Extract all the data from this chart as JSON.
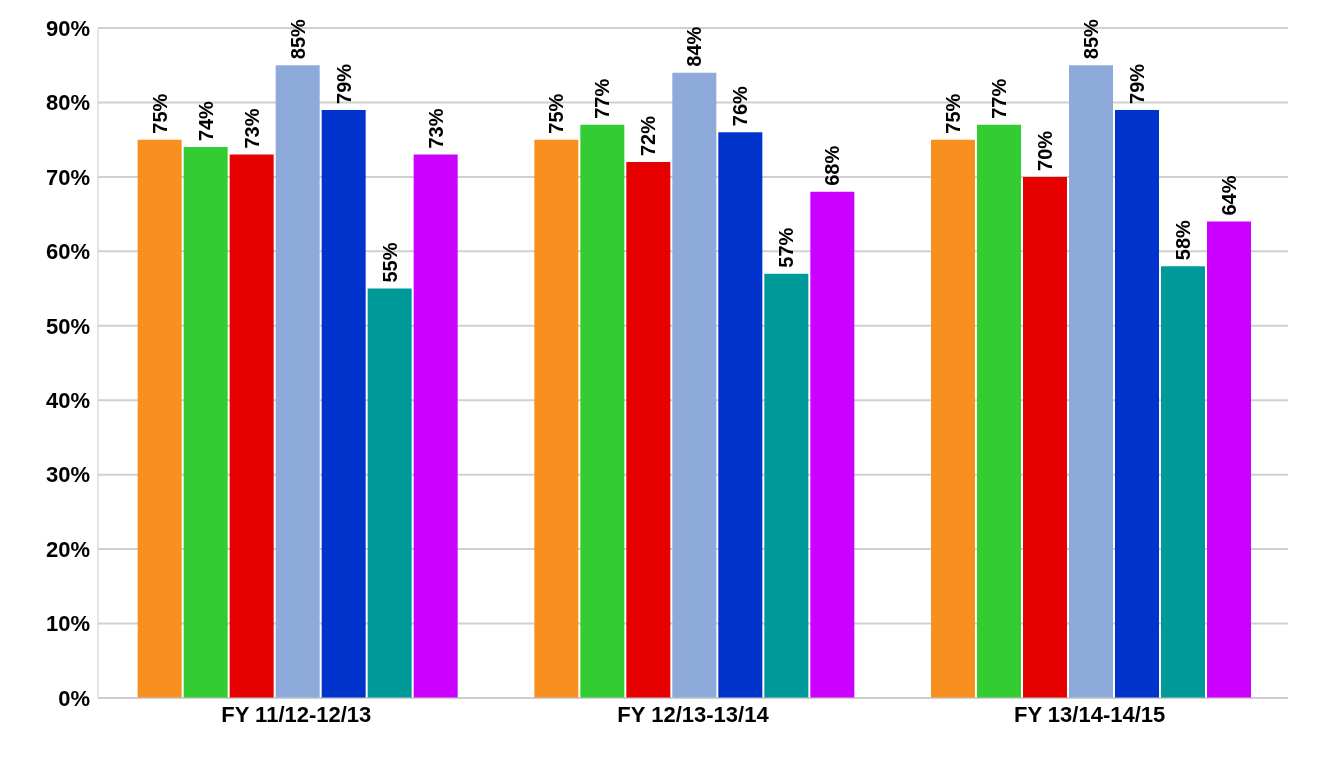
{
  "chart_data": {
    "type": "bar",
    "categories": [
      "FY 11/12-12/13",
      "FY 12/13-13/14",
      "FY 13/14-14/15"
    ],
    "series": [
      {
        "color": "#f7901e",
        "values": [
          75,
          75,
          75
        ],
        "value_labels": [
          "75%",
          "75%",
          "75%"
        ]
      },
      {
        "color": "#33cc33",
        "values": [
          74,
          77,
          77
        ],
        "value_labels": [
          "74%",
          "77%",
          "77%"
        ]
      },
      {
        "color": "#e60000",
        "values": [
          73,
          72,
          70
        ],
        "value_labels": [
          "73%",
          "72%",
          "70%"
        ]
      },
      {
        "color": "#8eaadb",
        "values": [
          85,
          84,
          85
        ],
        "value_labels": [
          "85%",
          "84%",
          "85%"
        ]
      },
      {
        "color": "#0033cc",
        "values": [
          79,
          76,
          79
        ],
        "value_labels": [
          "79%",
          "76%",
          "79%"
        ]
      },
      {
        "color": "#009999",
        "values": [
          55,
          57,
          58
        ],
        "value_labels": [
          "55%",
          "57%",
          "58%"
        ]
      },
      {
        "color": "#cc00ff",
        "values": [
          73,
          68,
          64
        ],
        "value_labels": [
          "73%",
          "68%",
          "64%"
        ]
      }
    ],
    "ylim": [
      0,
      90
    ],
    "yticks": [
      {
        "value": 0,
        "label": "0%"
      },
      {
        "value": 10,
        "label": "10%"
      },
      {
        "value": 20,
        "label": "20%"
      },
      {
        "value": 30,
        "label": "30%"
      },
      {
        "value": 40,
        "label": "40%"
      },
      {
        "value": 50,
        "label": "50%"
      },
      {
        "value": 60,
        "label": "60%"
      },
      {
        "value": 70,
        "label": "70%"
      },
      {
        "value": 80,
        "label": "80%"
      },
      {
        "value": 90,
        "label": "90%"
      }
    ],
    "grid": "y",
    "legend": false
  }
}
